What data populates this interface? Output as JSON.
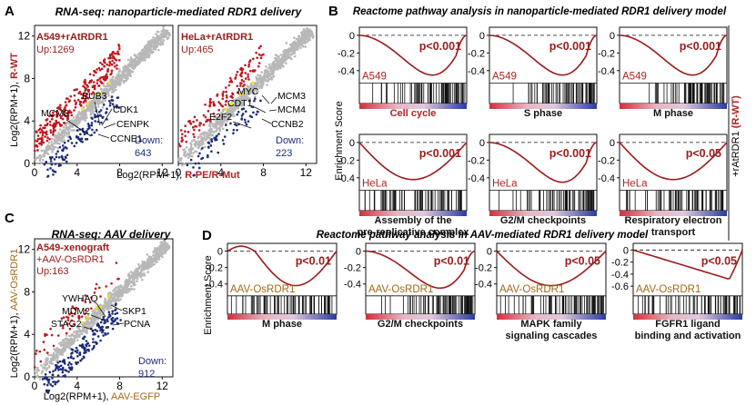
{
  "colors": {
    "red": "#b22222",
    "darkred": "#9b1b1b",
    "blue": "#1b2a7a",
    "grey": "#b8b8b8",
    "olive": "#a06a1a",
    "axis": "#111111"
  },
  "panels": {
    "A": "A",
    "B": "B",
    "C": "C",
    "D": "D"
  },
  "A": {
    "title": "RNA-seq: nanoparticle-mediated RDR1 delivery",
    "ylabel_prefix": "Log2(RPM+1), ",
    "ylabel_suffix": "R-WT",
    "xlabel_prefix": "Log2(RPM+1), ",
    "xlabel_suffix": "R-PE/R-Mut",
    "ticks": [
      "0",
      "4",
      "8",
      "12"
    ],
    "left": {
      "sample": "A549+rAtRDR1",
      "up": "Up:1269",
      "down_label": "Down:",
      "down_value": "643",
      "genes": [
        "BUB3",
        "CDK1",
        "MCM8",
        "CENPK",
        "CCNE1"
      ]
    },
    "right": {
      "sample": "HeLa+rAtRDR1",
      "up": "Up:465",
      "down_label": "Down:",
      "down_value": "223",
      "genes": [
        "MYC",
        "MCM3",
        "CDT1",
        "MCM4",
        "E2F2",
        "CCNB2"
      ]
    }
  },
  "B": {
    "title": "Reactome pathway analysis in nanoparticle-mediated RDR1 delivery model",
    "ylabel": "Enrichment Score",
    "side_label": "+rAtRDR1 ",
    "side_label_highlight": "(R-WT)",
    "yticks": [
      "0",
      "-0.2",
      "-0.4"
    ],
    "plots": [
      {
        "cell": "A549",
        "p": "p<0.001",
        "label": "Cell cycle",
        "label_color": "#b22222"
      },
      {
        "cell": "A549",
        "p": "p<0.001",
        "label": "S phase",
        "label_color": "#111111"
      },
      {
        "cell": "A549",
        "p": "p<0.001",
        "label": "M phase",
        "label_color": "#111111"
      },
      {
        "cell": "HeLa",
        "p": "p<0.001",
        "label": "Assembly of the",
        "label2": "pre-replicative complex",
        "label_color": "#111111"
      },
      {
        "cell": "HeLa",
        "p": "p<0.001",
        "label": "G2/M checkpoints",
        "label_color": "#111111"
      },
      {
        "cell": "HeLa",
        "p": "p<0.05",
        "label": "Respiratory electron",
        "label2": "transport",
        "label_color": "#111111"
      }
    ]
  },
  "C": {
    "title": "RNA-seq: AAV delivery",
    "ylabel_prefix": "Log2(RPM+1), ",
    "ylabel_suffix": "AAV-OsRDR1",
    "xlabel_prefix": "Log2(RPM+1), ",
    "xlabel_suffix": "AAV-EGFP",
    "sample1": "A549-xenograft",
    "sample2": "+AAV-OsRDR1",
    "up": "Up:163",
    "down_label": "Down:",
    "down_value": "912",
    "genes": [
      "YWHAQ",
      "MDM2",
      "SKP1",
      "STAG2",
      "PCNA"
    ],
    "ticks": [
      "0",
      "4",
      "8",
      "12"
    ]
  },
  "D": {
    "title": "Reactome pathway analysis in AAV-mediated RDR1 delivery model",
    "ylabel": "Enrichment Score",
    "plots": [
      {
        "cell": "AAV-OsRDR1",
        "p": "p<0.01",
        "label": "M phase",
        "yticks": [
          "0",
          "-0.2",
          "-0.4"
        ]
      },
      {
        "cell": "AAV-OsRDR1",
        "p": "p<0.01",
        "label": "G2/M checkpoints",
        "yticks": [
          "0",
          "-0.2",
          "-0.4"
        ]
      },
      {
        "cell": "AAV-OsRDR1",
        "p": "p<0.05",
        "label": "MAPK  family",
        "label2": "signaling cascades",
        "yticks": [
          "0",
          "-0.2",
          "-0.4"
        ]
      },
      {
        "cell": "AAV-OsRDR1",
        "p": "p<0.05",
        "label": "FGFR1 ligand",
        "label2": "binding and activation",
        "yticks": [
          "0",
          "-0.2",
          "-0.4",
          "-0.6"
        ]
      }
    ]
  }
}
